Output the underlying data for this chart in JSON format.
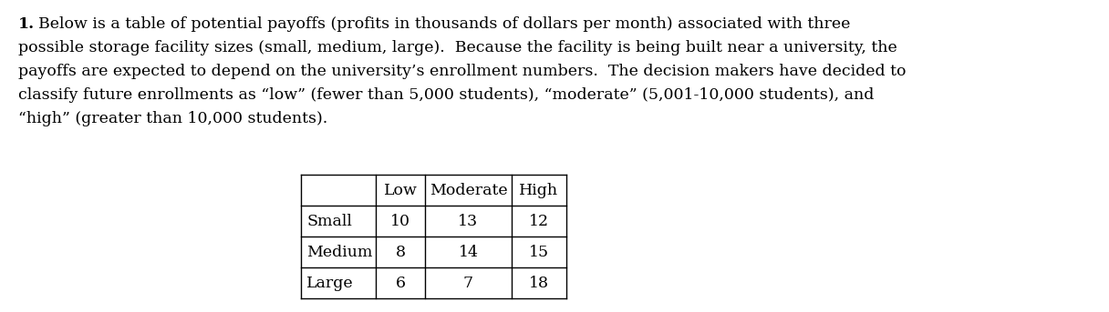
{
  "paragraph_number": "1.",
  "para_line1": "Below is a table of potential payoffs (profits in thousands of dollars per month) associated with three",
  "para_line2": "possible storage facility sizes (small, medium, large).  Because the facility is being built near a university, the",
  "para_line3": "payoffs are expected to depend on the university’s enrollment numbers.  The decision makers have decided to",
  "para_line4": "classify future enrollments as “low” (fewer than 5,000 students), “moderate” (5,001-10,000 students), and",
  "para_line5": "“high” (greater than 10,000 students).",
  "table_col_headers": [
    "",
    "Low",
    "Moderate",
    "High"
  ],
  "table_rows": [
    [
      "Small",
      "10",
      "13",
      "12"
    ],
    [
      "Medium",
      "8",
      "14",
      "15"
    ],
    [
      "Large",
      "6",
      "7",
      "18"
    ]
  ],
  "font_size_text": 12.5,
  "font_size_table": 12.5,
  "font_family": "DejaVu Serif",
  "background_color": "#ffffff",
  "text_color": "#000000",
  "fig_width": 12.16,
  "fig_height": 3.43,
  "dpi": 100
}
